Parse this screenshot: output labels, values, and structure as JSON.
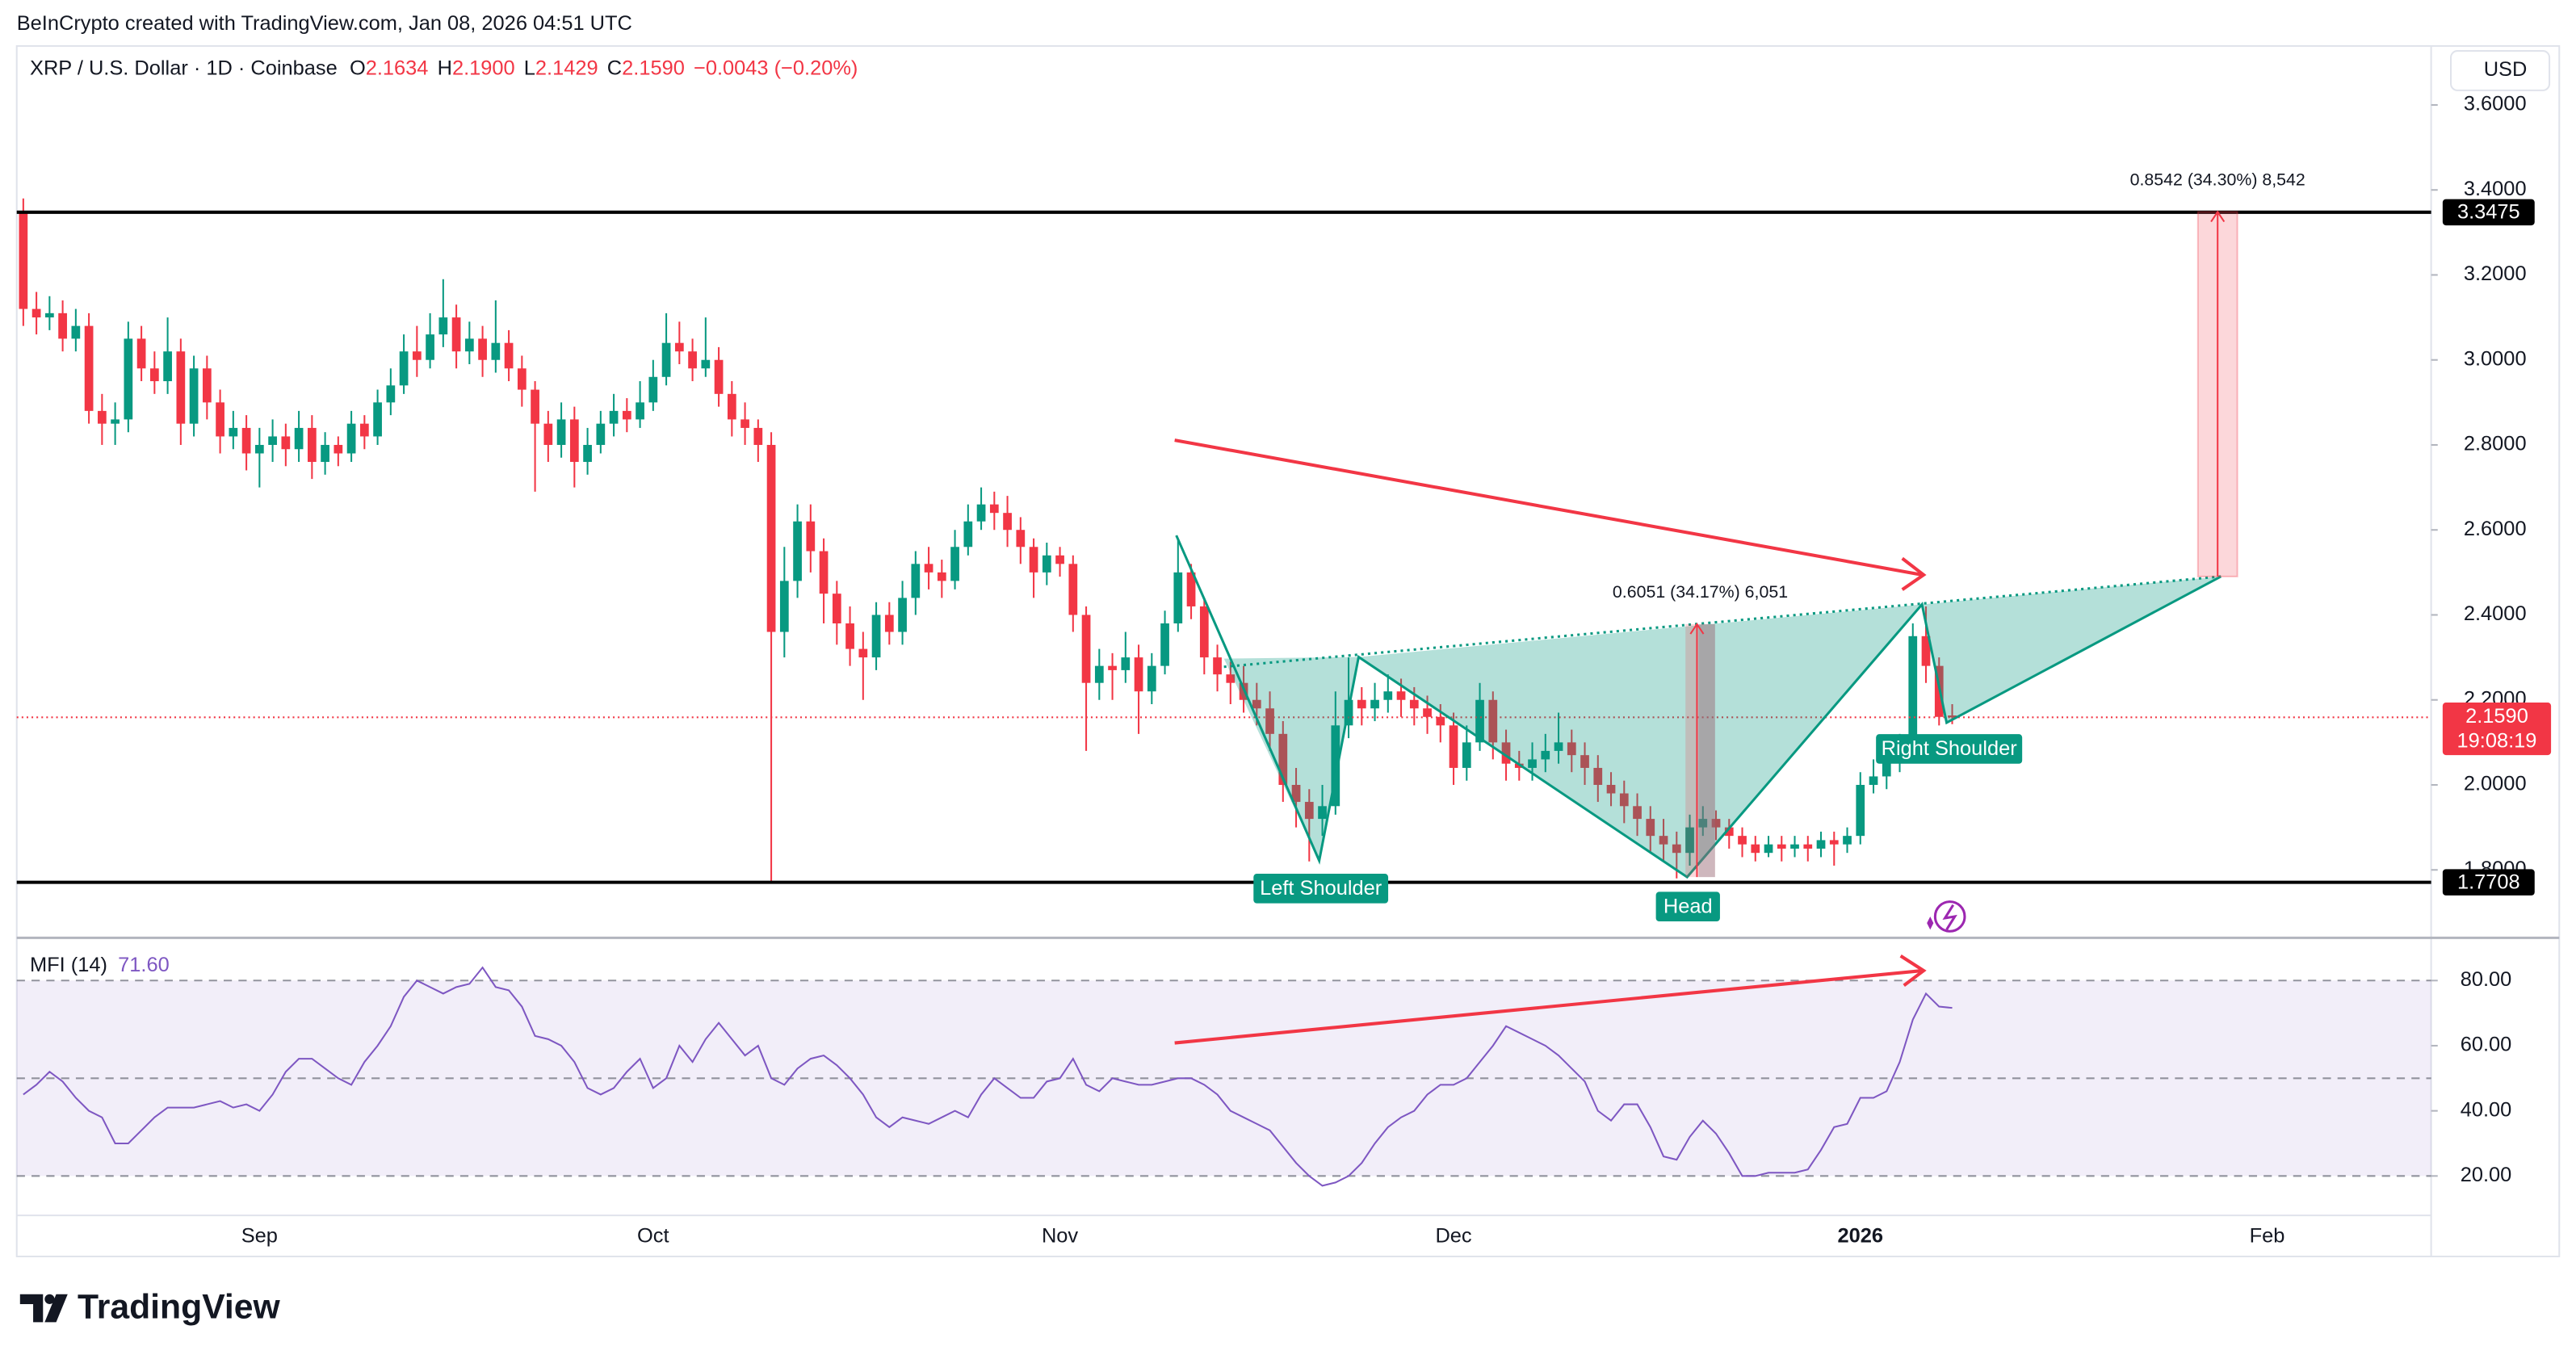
{
  "chart_data": {
    "type": "candlestick",
    "watermark": "BeInCrypto created with TradingView.com, Jan 08, 2026 04:51 UTC",
    "title": "XRP / U.S. Dollar · 1D · Coinbase",
    "ohlc": [
      {
        "label": "O",
        "value": "2.1634"
      },
      {
        "label": "H",
        "value": "2.1900"
      },
      {
        "label": "L",
        "value": "2.1429"
      },
      {
        "label": "C",
        "value": "2.1590"
      }
    ],
    "change": "−0.0043 (−0.20%)",
    "currency": "USD",
    "brand": "TradingView",
    "up_color": "#089981",
    "down_color": "#f23645",
    "categories": [
      null,
      null,
      null,
      null,
      null,
      null,
      null,
      null,
      null,
      null,
      null,
      null,
      null,
      null,
      null,
      null,
      null,
      null,
      "Sep",
      null,
      null,
      null,
      null,
      null,
      null,
      null,
      null,
      null,
      null,
      null,
      null,
      null,
      null,
      null,
      null,
      null,
      null,
      null,
      null,
      null,
      null,
      null,
      null,
      null,
      null,
      null,
      null,
      null,
      "Oct",
      null,
      null,
      null,
      null,
      null,
      null,
      null,
      null,
      null,
      null,
      null,
      null,
      null,
      null,
      null,
      null,
      null,
      null,
      null,
      null,
      null,
      null,
      null,
      null,
      null,
      null,
      null,
      null,
      null,
      null,
      "Nov",
      null,
      null,
      null,
      null,
      null,
      null,
      null,
      null,
      null,
      null,
      null,
      null,
      null,
      null,
      null,
      null,
      null,
      null,
      null,
      null,
      null,
      null,
      null,
      null,
      null,
      null,
      null,
      null,
      null,
      "Dec",
      null,
      null,
      null,
      null,
      null,
      null,
      null,
      null,
      null,
      null,
      null,
      null,
      null,
      null,
      null,
      null,
      null,
      null,
      null,
      null,
      null,
      null,
      null,
      null,
      null,
      null,
      null,
      null,
      null,
      null,
      "2026",
      null,
      null,
      null,
      null,
      null,
      null,
      null,
      null,
      null,
      null,
      null,
      null,
      null,
      null,
      null,
      null,
      null,
      null,
      null,
      null,
      null,
      null,
      null,
      null,
      null,
      null,
      null,
      null,
      null,
      null,
      "Feb",
      null,
      null,
      null,
      null,
      null,
      null,
      null,
      null,
      null,
      null,
      null,
      null
    ],
    "open": [
      3.35,
      3.12,
      3.1,
      3.11,
      3.05,
      3.08,
      2.88,
      2.85,
      2.86,
      3.05,
      2.98,
      2.95,
      3.02,
      2.85,
      2.98,
      2.9,
      2.82,
      2.84,
      2.78,
      2.8,
      2.82,
      2.79,
      2.84,
      2.76,
      2.8,
      2.78,
      2.85,
      2.82,
      2.9,
      2.94,
      3.02,
      3.0,
      3.06,
      3.1,
      3.02,
      3.05,
      3.0,
      3.04,
      2.98,
      2.93,
      2.85,
      2.8,
      2.86,
      2.76,
      2.8,
      2.85,
      2.88,
      2.86,
      2.9,
      2.96,
      3.04,
      3.02,
      2.98,
      3.0,
      2.92,
      2.86,
      2.84,
      2.8,
      2.36,
      2.48,
      2.62,
      2.55,
      2.45,
      2.38,
      2.32,
      2.3,
      2.4,
      2.36,
      2.44,
      2.52,
      2.5,
      2.48,
      2.56,
      2.62,
      2.66,
      2.64,
      2.6,
      2.56,
      2.5,
      2.54,
      2.52,
      2.4,
      2.24,
      2.28,
      2.27,
      2.3,
      2.22,
      2.28,
      2.38,
      2.5,
      2.42,
      2.3,
      2.26,
      2.24,
      2.2,
      2.18,
      2.12,
      2.0,
      1.96,
      1.92,
      1.95,
      2.14,
      2.2,
      2.18,
      2.2,
      2.22,
      2.2,
      2.18,
      2.16,
      2.14,
      2.04,
      2.1,
      2.2,
      2.1,
      2.05,
      2.04,
      2.06,
      2.08,
      2.1,
      2.07,
      2.04,
      2.0,
      1.98,
      1.95,
      1.92,
      1.88,
      1.86,
      1.84,
      1.9,
      1.92,
      1.9,
      1.88,
      1.86,
      1.84,
      1.86,
      1.85,
      1.86,
      1.85,
      1.87,
      1.86,
      1.88,
      2.0,
      2.02,
      2.06,
      2.08,
      2.35,
      2.28,
      2.1634,
      null,
      null,
      null,
      null,
      null,
      null,
      null,
      null,
      null,
      null,
      null,
      null,
      null,
      null,
      null,
      null,
      null,
      null,
      null,
      null,
      null,
      null,
      null,
      null,
      null,
      null,
      null,
      null,
      null,
      null,
      null,
      null,
      null,
      null,
      null,
      null
    ],
    "high": [
      3.38,
      3.16,
      3.15,
      3.14,
      3.12,
      3.11,
      2.92,
      2.9,
      3.09,
      3.08,
      3.02,
      3.1,
      3.05,
      3.01,
      3.01,
      2.93,
      2.88,
      2.87,
      2.84,
      2.86,
      2.85,
      2.88,
      2.87,
      2.83,
      2.82,
      2.88,
      2.87,
      2.93,
      2.98,
      3.06,
      3.08,
      3.11,
      3.19,
      3.13,
      3.09,
      3.08,
      3.14,
      3.07,
      3.01,
      2.95,
      2.88,
      2.9,
      2.89,
      2.84,
      2.88,
      2.92,
      2.91,
      2.95,
      3.0,
      3.11,
      3.09,
      3.05,
      3.1,
      3.03,
      2.95,
      2.9,
      2.86,
      2.83,
      2.56,
      2.66,
      2.66,
      2.58,
      2.48,
      2.42,
      2.36,
      2.43,
      2.43,
      2.48,
      2.55,
      2.56,
      2.53,
      2.6,
      2.66,
      2.7,
      2.69,
      2.68,
      2.63,
      2.58,
      2.57,
      2.56,
      2.54,
      2.42,
      2.32,
      2.31,
      2.36,
      2.33,
      2.31,
      2.41,
      2.58,
      2.52,
      2.44,
      2.33,
      2.29,
      2.28,
      2.24,
      2.22,
      2.15,
      2.04,
      1.99,
      2.0,
      2.22,
      2.3,
      2.23,
      2.24,
      2.26,
      2.25,
      2.23,
      2.21,
      2.19,
      2.17,
      2.14,
      2.24,
      2.22,
      2.13,
      2.08,
      2.1,
      2.12,
      2.17,
      2.13,
      2.1,
      2.07,
      2.03,
      2.01,
      1.98,
      1.95,
      1.92,
      1.89,
      1.93,
      1.95,
      1.94,
      1.92,
      1.9,
      1.88,
      1.88,
      1.88,
      1.88,
      1.88,
      1.89,
      1.89,
      1.9,
      2.03,
      2.06,
      2.09,
      2.12,
      2.38,
      2.42,
      2.3,
      2.19,
      null,
      null,
      null,
      null,
      null,
      null,
      null,
      null,
      null,
      null,
      null,
      null,
      null,
      null,
      null,
      null,
      null,
      null,
      null,
      null,
      null,
      null,
      null,
      null,
      null,
      null,
      null,
      null,
      null,
      null,
      null,
      null,
      null,
      null,
      null,
      null
    ],
    "low": [
      3.08,
      3.06,
      3.07,
      3.02,
      3.02,
      2.85,
      2.8,
      2.8,
      2.83,
      2.95,
      2.92,
      2.92,
      2.8,
      2.82,
      2.86,
      2.78,
      2.79,
      2.74,
      2.7,
      2.76,
      2.75,
      2.76,
      2.72,
      2.73,
      2.75,
      2.76,
      2.79,
      2.8,
      2.87,
      2.92,
      2.96,
      2.98,
      3.03,
      2.98,
      2.99,
      2.96,
      2.97,
      2.95,
      2.89,
      2.69,
      2.76,
      2.77,
      2.7,
      2.73,
      2.78,
      2.82,
      2.83,
      2.84,
      2.88,
      2.94,
      2.99,
      2.95,
      2.96,
      2.89,
      2.82,
      2.8,
      2.76,
      1.77,
      2.3,
      2.44,
      2.5,
      2.38,
      2.33,
      2.28,
      2.2,
      2.27,
      2.33,
      2.33,
      2.4,
      2.46,
      2.44,
      2.46,
      2.54,
      2.6,
      2.6,
      2.56,
      2.52,
      2.44,
      2.47,
      2.49,
      2.36,
      2.08,
      2.2,
      2.2,
      2.24,
      2.12,
      2.19,
      2.26,
      2.36,
      2.39,
      2.26,
      2.22,
      2.19,
      2.17,
      2.14,
      2.08,
      1.96,
      1.9,
      1.82,
      1.88,
      1.93,
      2.11,
      2.14,
      2.15,
      2.17,
      2.16,
      2.14,
      2.12,
      2.1,
      2.0,
      2.01,
      2.08,
      2.06,
      2.01,
      2.01,
      2.01,
      2.03,
      2.05,
      2.03,
      2.0,
      1.96,
      1.95,
      1.91,
      1.88,
      1.84,
      1.82,
      1.78,
      1.81,
      1.88,
      1.87,
      1.85,
      1.83,
      1.82,
      1.83,
      1.82,
      1.83,
      1.82,
      1.83,
      1.81,
      1.84,
      1.86,
      1.98,
      1.99,
      2.03,
      2.06,
      2.24,
      2.14,
      2.1429,
      null,
      null,
      null,
      null,
      null,
      null,
      null,
      null,
      null,
      null,
      null,
      null,
      null,
      null,
      null,
      null,
      null,
      null,
      null,
      null,
      null,
      null,
      null,
      null,
      null,
      null,
      null,
      null,
      null,
      null,
      null,
      null,
      null,
      null,
      null,
      null
    ],
    "close": [
      3.12,
      3.1,
      3.11,
      3.05,
      3.08,
      2.88,
      2.85,
      2.86,
      3.05,
      2.98,
      2.95,
      3.02,
      2.85,
      2.98,
      2.9,
      2.82,
      2.84,
      2.78,
      2.8,
      2.82,
      2.79,
      2.84,
      2.76,
      2.8,
      2.78,
      2.85,
      2.82,
      2.9,
      2.94,
      3.02,
      3.0,
      3.06,
      3.1,
      3.02,
      3.05,
      3.0,
      3.04,
      2.98,
      2.93,
      2.85,
      2.8,
      2.86,
      2.76,
      2.8,
      2.85,
      2.88,
      2.86,
      2.9,
      2.96,
      3.04,
      3.02,
      2.98,
      3.0,
      2.92,
      2.86,
      2.84,
      2.8,
      2.36,
      2.48,
      2.62,
      2.55,
      2.45,
      2.38,
      2.32,
      2.3,
      2.4,
      2.36,
      2.44,
      2.52,
      2.5,
      2.48,
      2.56,
      2.62,
      2.66,
      2.64,
      2.6,
      2.56,
      2.5,
      2.54,
      2.52,
      2.4,
      2.24,
      2.28,
      2.27,
      2.3,
      2.22,
      2.28,
      2.38,
      2.5,
      2.42,
      2.3,
      2.26,
      2.24,
      2.2,
      2.18,
      2.12,
      2.0,
      1.96,
      1.92,
      1.95,
      2.14,
      2.2,
      2.18,
      2.2,
      2.22,
      2.2,
      2.18,
      2.16,
      2.14,
      2.04,
      2.1,
      2.2,
      2.1,
      2.05,
      2.04,
      2.06,
      2.08,
      2.1,
      2.07,
      2.04,
      2.0,
      1.98,
      1.95,
      1.92,
      1.88,
      1.86,
      1.84,
      1.9,
      1.92,
      1.9,
      1.88,
      1.86,
      1.84,
      1.86,
      1.85,
      1.86,
      1.85,
      1.87,
      1.86,
      1.88,
      2.0,
      2.02,
      2.06,
      2.08,
      2.35,
      2.28,
      2.16,
      2.159,
      null,
      null,
      null,
      null,
      null,
      null,
      null,
      null,
      null,
      null,
      null,
      null,
      null,
      null,
      null,
      null,
      null,
      null,
      null,
      null,
      null,
      null,
      null,
      null,
      null,
      null,
      null,
      null,
      null,
      null,
      null,
      null,
      null,
      null,
      null,
      null
    ],
    "ylim": [
      1.644,
      3.731
    ],
    "yticks": [
      {
        "value": 1.8,
        "label": "1.8000"
      },
      {
        "value": 2.0,
        "label": "2.0000"
      },
      {
        "value": 2.2,
        "label": "2.2000"
      },
      {
        "value": 2.4,
        "label": "2.4000"
      },
      {
        "value": 2.6,
        "label": "2.6000"
      },
      {
        "value": 2.8,
        "label": "2.8000"
      },
      {
        "value": 3.0,
        "label": "3.0000"
      },
      {
        "value": 3.2,
        "label": "3.2000"
      },
      {
        "value": 3.4,
        "label": "3.4000"
      },
      {
        "value": 3.6,
        "label": "3.6000"
      }
    ],
    "grid": false,
    "levels": [
      3.3475,
      1.7708
    ],
    "last_price": {
      "value": 2.159,
      "label": "2.1590"
    },
    "countdown": "19:08:19",
    "annotations": {
      "left_shoulder": "Left Shoulder",
      "head": "Head",
      "right_shoulder": "Right Shoulder",
      "measure_1": "0.6051 (34.17%) 6,051",
      "measure_2": "0.8542 (34.30%) 8,542"
    },
    "indicator": {
      "name": "MFI (14)",
      "value_label": "71.60",
      "color": "#7e57c2",
      "values": [
        45,
        48,
        52,
        49,
        44,
        40,
        38,
        30,
        30,
        34,
        38,
        41,
        41,
        41,
        42,
        43,
        41,
        42,
        40,
        45,
        52,
        56,
        56,
        53,
        50,
        48,
        55,
        60,
        66,
        75,
        80,
        78,
        76,
        78,
        79,
        84,
        78,
        77,
        72,
        63,
        62,
        60,
        55,
        47,
        45,
        47,
        52,
        56,
        47,
        50,
        60,
        55,
        62,
        67,
        62,
        57,
        60,
        50,
        48,
        53,
        56,
        57,
        54,
        50,
        45,
        38,
        35,
        38,
        37,
        36,
        38,
        40,
        38,
        45,
        50,
        47,
        44,
        44,
        49,
        50,
        56,
        48,
        46,
        50,
        49,
        48,
        48,
        49,
        50,
        50,
        48,
        45,
        40,
        38,
        36,
        34,
        29,
        24,
        20,
        17,
        18,
        20,
        24,
        30,
        35,
        38,
        40,
        45,
        48,
        48,
        50,
        55,
        60,
        66,
        64,
        62,
        60,
        57,
        53,
        49,
        40,
        37,
        42,
        42,
        35,
        26,
        25,
        32,
        37,
        33,
        27,
        20,
        20,
        21,
        21,
        21,
        22,
        28,
        35,
        36,
        44,
        44,
        46,
        55,
        68,
        76,
        72,
        71.6,
        null,
        null,
        null,
        null,
        null,
        null,
        null,
        null,
        null,
        null,
        null,
        null,
        null,
        null,
        null,
        null,
        null,
        null,
        null,
        null,
        null,
        null,
        null,
        null,
        null,
        null,
        null,
        null,
        null,
        null,
        null,
        null,
        null,
        null,
        null,
        null
      ],
      "ylim": [
        7.9,
        91.1
      ],
      "yticks": [
        {
          "value": 20,
          "label": "20.00"
        },
        {
          "value": 40,
          "label": "40.00"
        },
        {
          "value": 60,
          "label": "60.00"
        },
        {
          "value": 80,
          "label": "80.00"
        }
      ],
      "bands": [
        20,
        50,
        80
      ]
    }
  }
}
